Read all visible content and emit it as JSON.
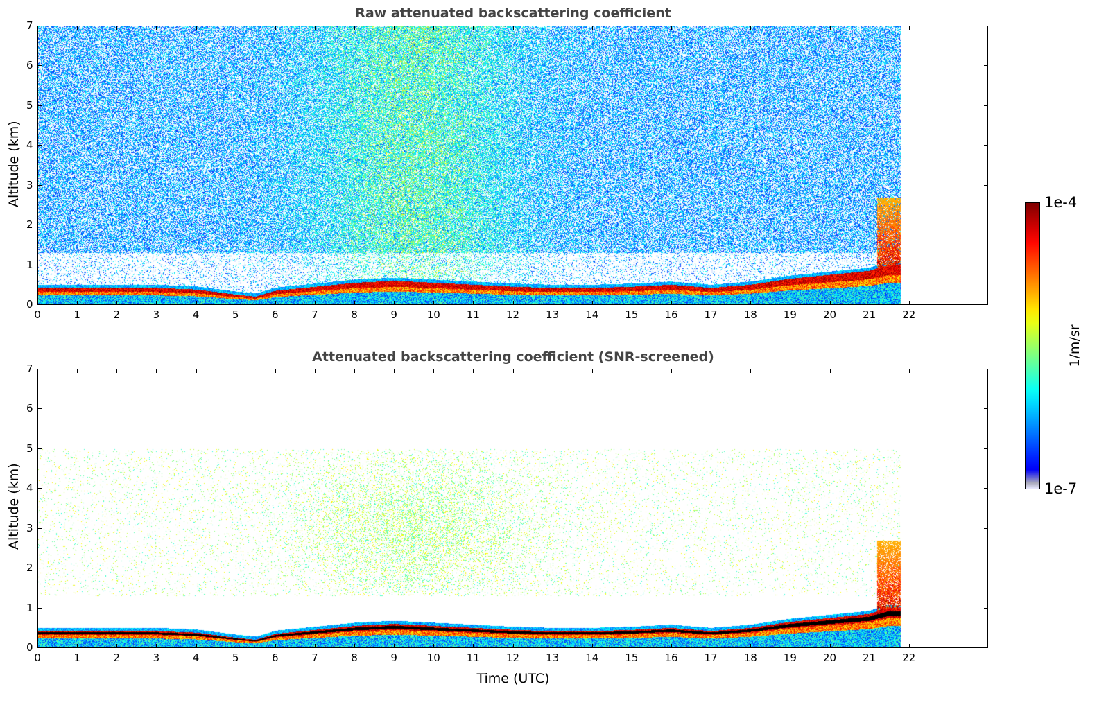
{
  "chart_data": [
    {
      "type": "heatmap",
      "title": "Raw attenuated backscattering coefficient",
      "xlabel": "",
      "ylabel": "Altitude (km)",
      "xlim": [
        0,
        24
      ],
      "ylim": [
        0,
        7
      ],
      "xticks": [
        0,
        1,
        2,
        3,
        4,
        5,
        6,
        7,
        8,
        9,
        10,
        11,
        12,
        13,
        14,
        15,
        16,
        17,
        18,
        19,
        20,
        21,
        22
      ],
      "yticks": [
        0,
        1,
        2,
        3,
        4,
        5,
        6,
        7
      ],
      "data_end_time": 21.8,
      "aerosol_layer_top_km": {
        "time": [
          0,
          1,
          2,
          3,
          4,
          5,
          5.5,
          6,
          7,
          8,
          9,
          10,
          11,
          12,
          13,
          14,
          15,
          16,
          17,
          18,
          19,
          20,
          21,
          21.5
        ],
        "height": [
          0.42,
          0.42,
          0.42,
          0.42,
          0.38,
          0.25,
          0.2,
          0.35,
          0.45,
          0.55,
          0.6,
          0.55,
          0.5,
          0.45,
          0.42,
          0.42,
          0.45,
          0.5,
          0.42,
          0.5,
          0.65,
          0.75,
          0.85,
          1.0
        ]
      }
    },
    {
      "type": "heatmap",
      "title": "Attenuated backscattering coefficient (SNR-screened)",
      "xlabel": "Time (UTC)",
      "ylabel": "Altitude (km)",
      "xlim": [
        0,
        24
      ],
      "ylim": [
        0,
        7
      ],
      "xticks": [
        0,
        1,
        2,
        3,
        4,
        5,
        6,
        7,
        8,
        9,
        10,
        11,
        12,
        13,
        14,
        15,
        16,
        17,
        18,
        19,
        20,
        21,
        22
      ],
      "yticks": [
        0,
        1,
        2,
        3,
        4,
        5,
        6,
        7
      ],
      "data_end_time": 21.8
    }
  ],
  "colorbar": {
    "label": "1/m/sr",
    "max_label": "1e-4",
    "min_label": "1e-7",
    "scale": "log",
    "range": [
      1e-07,
      0.0001
    ]
  }
}
